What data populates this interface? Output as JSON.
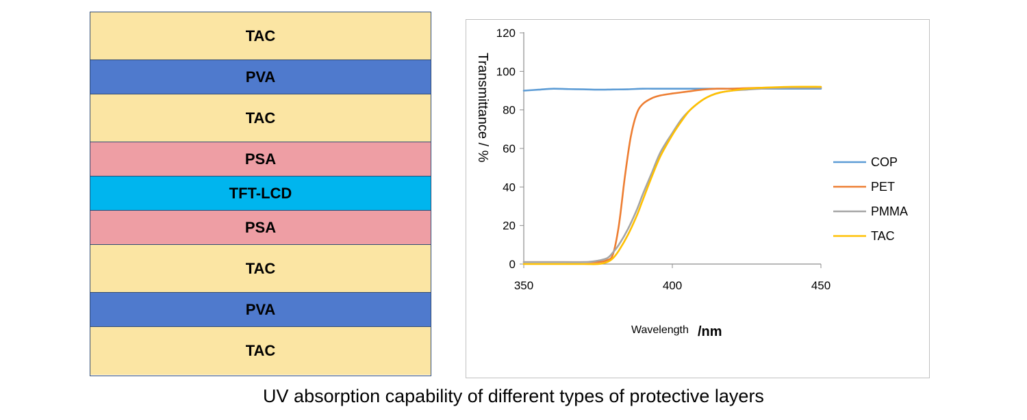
{
  "layers": [
    {
      "label": "TAC",
      "color": "#fbe5a3"
    },
    {
      "label": "PVA",
      "color": "#4f7acd"
    },
    {
      "label": "TAC",
      "color": "#fbe5a3"
    },
    {
      "label": "PSA",
      "color": "#ee9ea4"
    },
    {
      "label": "TFT-LCD",
      "color": "#00b5ee"
    },
    {
      "label": "PSA",
      "color": "#ee9ea4"
    },
    {
      "label": "TAC",
      "color": "#fbe5a3"
    },
    {
      "label": "PVA",
      "color": "#4f7acd"
    },
    {
      "label": "TAC",
      "color": "#fbe5a3"
    }
  ],
  "caption": "UV absorption capability of different types of protective layers",
  "chart_data": {
    "type": "line",
    "title": "",
    "xlabel": "Wavelength",
    "xlabel_unit": "/nm",
    "ylabel": "Transmittance / %",
    "xlim": [
      350,
      450
    ],
    "ylim": [
      0,
      120
    ],
    "xticks": [
      350,
      400,
      450
    ],
    "yticks": [
      0,
      20,
      40,
      60,
      80,
      100,
      120
    ],
    "grid": false,
    "legend_position": "right",
    "series": [
      {
        "name": "COP",
        "color": "#5b9bd5",
        "x": [
          350,
          355,
          360,
          365,
          370,
          375,
          380,
          385,
          390,
          395,
          400,
          405,
          410,
          415,
          420,
          425,
          430,
          435,
          440,
          445,
          450
        ],
        "y": [
          90,
          90.5,
          91,
          90.8,
          90.7,
          90.5,
          90.6,
          90.7,
          91,
          91,
          91,
          91,
          91,
          91,
          91,
          91,
          91,
          91,
          91,
          91,
          91
        ]
      },
      {
        "name": "PET",
        "color": "#ed7d31",
        "x": [
          350,
          360,
          370,
          375,
          378,
          380,
          382,
          384,
          386,
          388,
          390,
          393,
          396,
          400,
          405,
          410,
          415,
          420,
          430,
          440,
          450
        ],
        "y": [
          1,
          1,
          1,
          1,
          2,
          5,
          20,
          45,
          66,
          78,
          83,
          86,
          87.5,
          88.5,
          89.5,
          90.5,
          91,
          91,
          91.5,
          91.5,
          91.5
        ]
      },
      {
        "name": "PMMA",
        "color": "#a5a5a5",
        "x": [
          350,
          360,
          370,
          374,
          378,
          380,
          382,
          385,
          388,
          390,
          393,
          396,
          400,
          403,
          406,
          410,
          413,
          416,
          420,
          425,
          430,
          440,
          450
        ],
        "y": [
          1,
          1,
          1,
          1.5,
          3,
          6,
          10,
          18,
          28,
          36,
          47,
          58,
          68,
          75,
          80,
          85,
          87.5,
          89,
          90,
          90.5,
          91,
          91.5,
          91.5
        ]
      },
      {
        "name": "TAC",
        "color": "#ffc000",
        "x": [
          350,
          360,
          370,
          375,
          378,
          380,
          382,
          385,
          388,
          390,
          393,
          396,
          400,
          403,
          406,
          410,
          413,
          416,
          420,
          425,
          430,
          440,
          450
        ],
        "y": [
          0,
          0,
          0,
          0,
          1,
          3,
          7,
          15,
          25,
          33,
          45,
          56,
          67,
          74,
          80,
          85,
          87.5,
          89,
          90,
          91,
          91.5,
          92,
          92
        ]
      }
    ]
  }
}
